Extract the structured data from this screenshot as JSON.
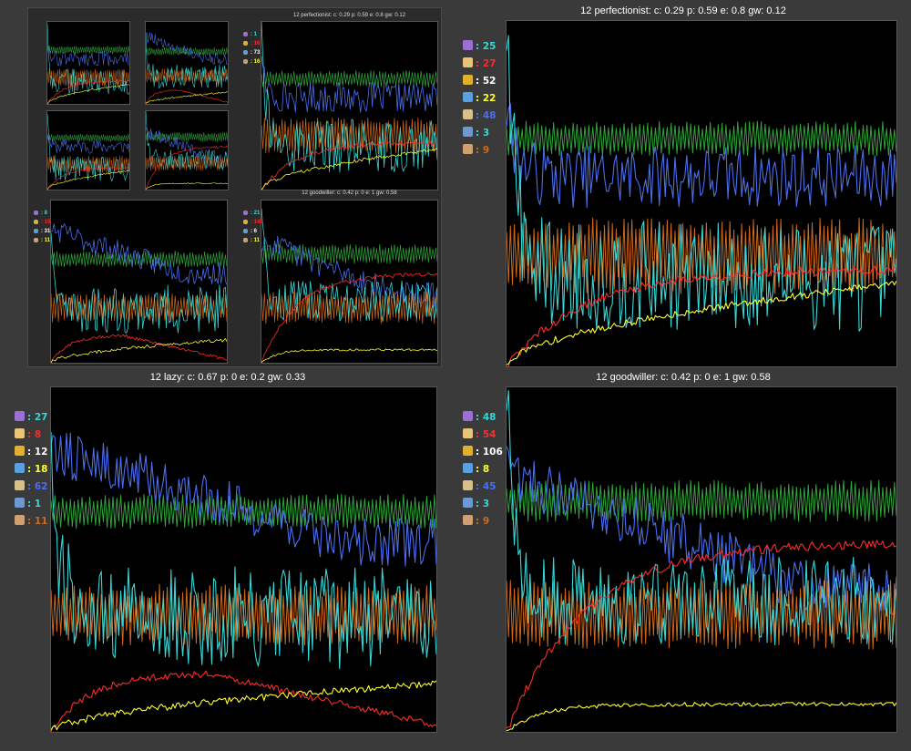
{
  "inset": {
    "top_title_1": "12 perfectionist: c: 0.29 p: 0.59 e: 0.8 gw: 0.12",
    "top_title_2": "12 goodwiller: c: 0.42 p: 0 e: 1 gw: 0.58",
    "legend_1": [
      "1",
      "16",
      "73",
      "16"
    ],
    "legend_2": [
      "21",
      "145",
      "6",
      "11"
    ],
    "legend_3": [
      "8",
      "15",
      "31",
      "11"
    ]
  },
  "legend_icons": [
    {
      "name": "person-icon",
      "color": "#9b6fd6"
    },
    {
      "name": "ticket-icon",
      "color": "#e8c37a"
    },
    {
      "name": "money-bag-icon",
      "color": "#e0b030"
    },
    {
      "name": "sweat-face-icon",
      "color": "#5aa0e0"
    },
    {
      "name": "hourglass-icon",
      "color": "#d8c08a"
    },
    {
      "name": "cycle-icon",
      "color": "#6c9ad0"
    },
    {
      "name": "muscle-icon",
      "color": "#d0a070"
    }
  ],
  "colors": {
    "cyan": "#37d7d7",
    "red": "#ff2a2a",
    "white": "#ffffff",
    "yellow": "#ffff2e",
    "blue": "#4a6ff0",
    "green": "#2fa53a",
    "orange": "#d06a1a"
  },
  "panels": [
    {
      "title": "12 perfectionist: c: 0.29 p: 0.59 e: 0.8 gw: 0.12",
      "legend": [
        "25",
        "27",
        "52",
        "22",
        "48",
        "3",
        "9"
      ]
    },
    {
      "title": "12 lazy: c: 0.67 p: 0 e: 0.2 gw: 0.33",
      "legend": [
        "27",
        "8",
        "12",
        "18",
        "62",
        "1",
        "11"
      ]
    },
    {
      "title": "12 goodwiller: c: 0.42 p: 0 e: 1 gw: 0.58",
      "legend": [
        "48",
        "54",
        "106",
        "8",
        "45",
        "3",
        "9"
      ]
    }
  ],
  "chart_data": [
    {
      "type": "line",
      "title": "12 perfectionist: c: 0.29 p: 0.59 e: 0.8 gw: 0.12",
      "x_range": [
        0,
        200
      ],
      "y_range": [
        0,
        1
      ],
      "series": [
        {
          "color": "#2fa53a",
          "level": 0.66,
          "start": 0.66,
          "style": "band",
          "amp": 0.05
        },
        {
          "color": "#4a6ff0",
          "level": 0.55,
          "start": 0.75,
          "style": "noisy",
          "amp": 0.09
        },
        {
          "color": "#d06a1a",
          "level": 0.32,
          "start": 0.32,
          "style": "band",
          "amp": 0.11
        },
        {
          "color": "#37d7d7",
          "level": 0.26,
          "start": 0.98,
          "style": "noisy",
          "amp": 0.16
        },
        {
          "color": "#ff2a2a",
          "level": 0.28,
          "start": 0.0,
          "style": "rise"
        },
        {
          "color": "#ffff2e",
          "level": 0.24,
          "start": 0.0,
          "style": "slow"
        }
      ]
    },
    {
      "type": "line",
      "title": "12 lazy: c: 0.67 p: 0 e: 0.2 gw: 0.33",
      "x_range": [
        0,
        200
      ],
      "y_range": [
        0,
        1
      ],
      "series": [
        {
          "color": "#2fa53a",
          "level": 0.64,
          "start": 0.64,
          "style": "band",
          "amp": 0.05
        },
        {
          "color": "#4a6ff0",
          "level": 0.55,
          "start": 0.82,
          "style": "decline",
          "amp": 0.07
        },
        {
          "color": "#d06a1a",
          "level": 0.34,
          "start": 0.34,
          "style": "band",
          "amp": 0.09
        },
        {
          "color": "#37d7d7",
          "level": 0.33,
          "start": 0.78,
          "style": "noisy",
          "amp": 0.15
        },
        {
          "color": "#ff2a2a",
          "level": 0.05,
          "start": 0.0,
          "style": "humpdown"
        },
        {
          "color": "#ffff2e",
          "level": 0.14,
          "start": 0.0,
          "style": "slow"
        }
      ]
    },
    {
      "type": "line",
      "title": "12 goodwiller: c: 0.42 p: 0 e: 1 gw: 0.58",
      "x_range": [
        0,
        200
      ],
      "y_range": [
        0,
        1
      ],
      "series": [
        {
          "color": "#2fa53a",
          "level": 0.67,
          "start": 0.67,
          "style": "band",
          "amp": 0.06
        },
        {
          "color": "#4a6ff0",
          "level": 0.42,
          "start": 0.75,
          "style": "decline",
          "amp": 0.08
        },
        {
          "color": "#d06a1a",
          "level": 0.34,
          "start": 0.34,
          "style": "band",
          "amp": 0.1
        },
        {
          "color": "#37d7d7",
          "level": 0.38,
          "start": 0.98,
          "style": "noisy",
          "amp": 0.13
        },
        {
          "color": "#ff2a2a",
          "level": 0.55,
          "start": 0.0,
          "style": "rise"
        },
        {
          "color": "#ffff2e",
          "level": 0.08,
          "start": 0.0,
          "style": "flat"
        }
      ]
    }
  ]
}
